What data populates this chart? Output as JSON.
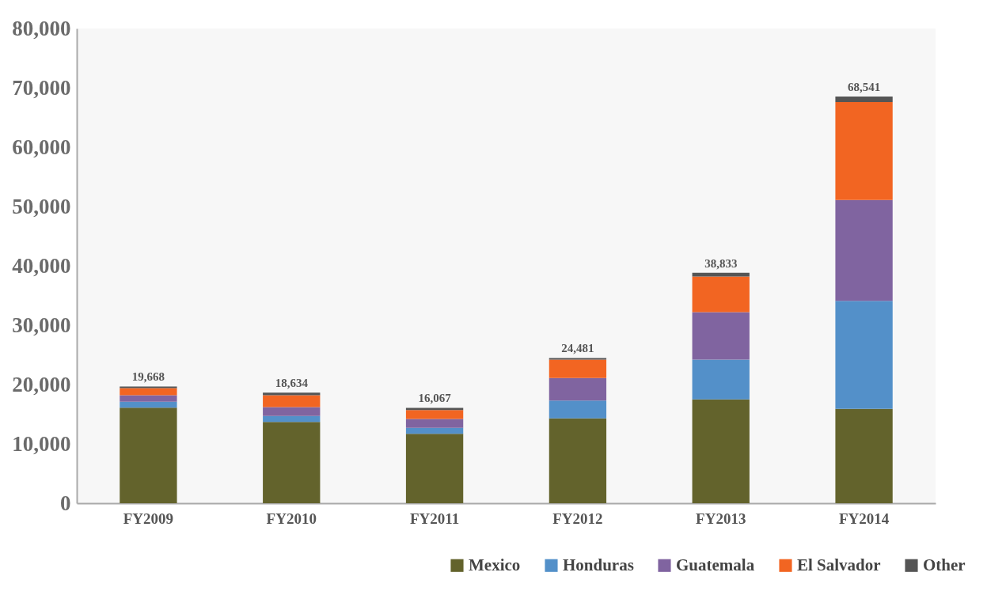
{
  "chart_data": {
    "type": "bar",
    "stacked": true,
    "categories": [
      "FY2009",
      "FY2010",
      "FY2011",
      "FY2012",
      "FY2013",
      "FY2014"
    ],
    "series": [
      {
        "name": "Mexico",
        "color": "#63632c",
        "values": [
          16100,
          13700,
          11700,
          14300,
          17500,
          15900
        ]
      },
      {
        "name": "Honduras",
        "color": "#5390c9",
        "values": [
          1000,
          1000,
          1000,
          3000,
          6700,
          18200
        ]
      },
      {
        "name": "Guatemala",
        "color": "#8064a0",
        "values": [
          1100,
          1500,
          1500,
          3800,
          8000,
          17000
        ]
      },
      {
        "name": "El Salvador",
        "color": "#f26522",
        "values": [
          1200,
          2000,
          1500,
          3100,
          6000,
          16500
        ]
      },
      {
        "name": "Other",
        "color": "#555555",
        "values": [
          268,
          434,
          367,
          281,
          633,
          941
        ]
      }
    ],
    "totals": [
      "19,668",
      "18,634",
      "16,067",
      "24,481",
      "38,833",
      "68,541"
    ],
    "ylim": [
      0,
      80000
    ],
    "yticks": [
      0,
      {
        "value": 10000,
        "label": "10,000"
      },
      {
        "value": 20000,
        "label": "20,000"
      },
      {
        "value": 30000,
        "label": "30,000"
      },
      {
        "value": 40000,
        "label": "40,000"
      },
      {
        "value": 50000,
        "label": "50,000"
      },
      {
        "value": 60000,
        "label": "60,000"
      },
      {
        "value": 70000,
        "label": "70,000"
      },
      {
        "value": 80000,
        "label": "80,000"
      }
    ],
    "grid": false,
    "legend": "bottom right"
  }
}
